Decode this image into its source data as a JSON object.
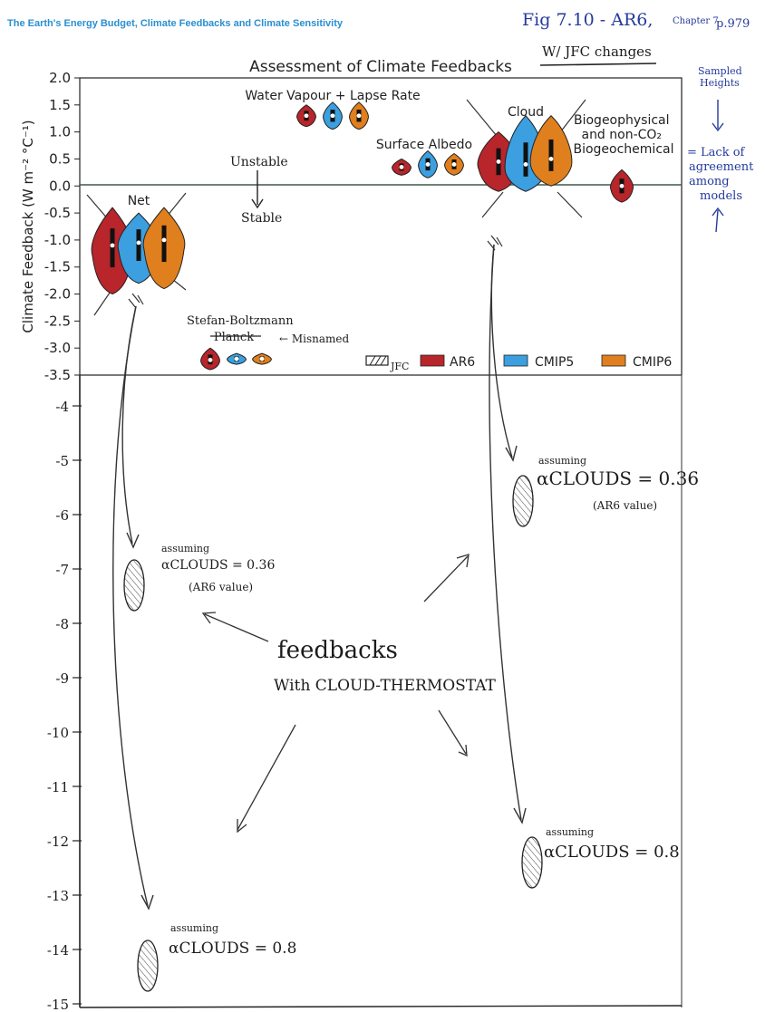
{
  "header": {
    "book_title": "The Earth's Energy Budget, Climate Feedbacks and Climate Sensitivity",
    "note_fig": "Fig 7.10 - AR6,",
    "note_chapter": "Chapter 7",
    "note_page": "p.979",
    "note_changes": "W/ JFC changes"
  },
  "chart_data": {
    "type": "violin",
    "title": "Assessment of Climate Feedbacks",
    "ylabel": "Climate Feedback (W m⁻² °C⁻¹)",
    "ylim_printed": [
      -3.5,
      2.0
    ],
    "ylim_extended": [
      -15,
      2.0
    ],
    "yticks_printed": [
      "2.0",
      "1.5",
      "1.0",
      "0.5",
      "0.0",
      "-0.5",
      "-1.0",
      "-1.5",
      "-2.0",
      "-2.5",
      "-3.0",
      "-3.5"
    ],
    "yticks_hand": [
      "-4",
      "-5",
      "-6",
      "-7",
      "-8",
      "-9",
      "-10",
      "-11",
      "-12",
      "-13",
      "-14",
      "-15"
    ],
    "legend": [
      {
        "name": "AR6",
        "color": "#b8252a"
      },
      {
        "name": "CMIP5",
        "color": "#3b9fe0"
      },
      {
        "name": "CMIP6",
        "color": "#e07f1e"
      }
    ],
    "legend_jfc": "JFC",
    "legend_placement": "bottom-right",
    "groups": [
      {
        "label": "Net",
        "center": -1.1,
        "ar6": [
          -2.0,
          -1.1,
          -0.4
        ],
        "cmip5": [
          -1.8,
          -1.05,
          -0.5
        ],
        "cmip6": [
          -1.9,
          -1.0,
          -0.4
        ]
      },
      {
        "label": "Planck",
        "center": -3.2,
        "ar6": [
          -3.4,
          -3.22,
          -3.0
        ],
        "cmip5": [
          -3.3,
          -3.2,
          -3.1
        ],
        "cmip6": [
          -3.3,
          -3.2,
          -3.1
        ]
      },
      {
        "label": "Water Vapour + Lapse Rate",
        "center": 1.3,
        "ar6": [
          1.1,
          1.3,
          1.5
        ],
        "cmip5": [
          1.05,
          1.3,
          1.55
        ],
        "cmip6": [
          1.05,
          1.3,
          1.55
        ]
      },
      {
        "label": "Surface Albedo",
        "center": 0.35,
        "ar6": [
          0.2,
          0.35,
          0.5
        ],
        "cmip5": [
          0.15,
          0.4,
          0.65
        ],
        "cmip6": [
          0.2,
          0.4,
          0.6
        ]
      },
      {
        "label": "Cloud",
        "center": 0.45,
        "ar6": [
          -0.1,
          0.45,
          1.0
        ],
        "cmip5": [
          -0.1,
          0.4,
          1.3
        ],
        "cmip6": [
          0.0,
          0.5,
          1.3
        ]
      },
      {
        "label": "Biogeophysical and non-CO₂ Biogeochemical",
        "center": 0.0,
        "ar6": [
          -0.3,
          0.0,
          0.3
        ],
        "cmip5": null,
        "cmip6": null
      }
    ],
    "regime_labels": {
      "above": "Unstable",
      "below": "Stable"
    }
  },
  "annotations": {
    "stefan": "Stefan-Boltzmann",
    "misnamed": "← Misnamed",
    "sampled_heights": "Sampled Heights",
    "lack_agreement": "= Lack of agreement among models",
    "feedbacks": "feedbacks",
    "with_thermostat": "With CLOUD-THERMOSTAT",
    "assuming": "assuming",
    "alpha_036": "αCLOUDS = 0.36",
    "alpha_08": "αCLOUDS = 0.8",
    "ar6_value": "(AR6 value)",
    "hand_estimates": [
      {
        "feedback": "Net",
        "alpha": 0.36,
        "value": -7.3
      },
      {
        "feedback": "Net",
        "alpha": 0.8,
        "value": -14.3
      },
      {
        "feedback": "Cloud",
        "alpha": 0.36,
        "value": -5.75
      },
      {
        "feedback": "Cloud",
        "alpha": 0.8,
        "value": -12.4
      }
    ]
  }
}
